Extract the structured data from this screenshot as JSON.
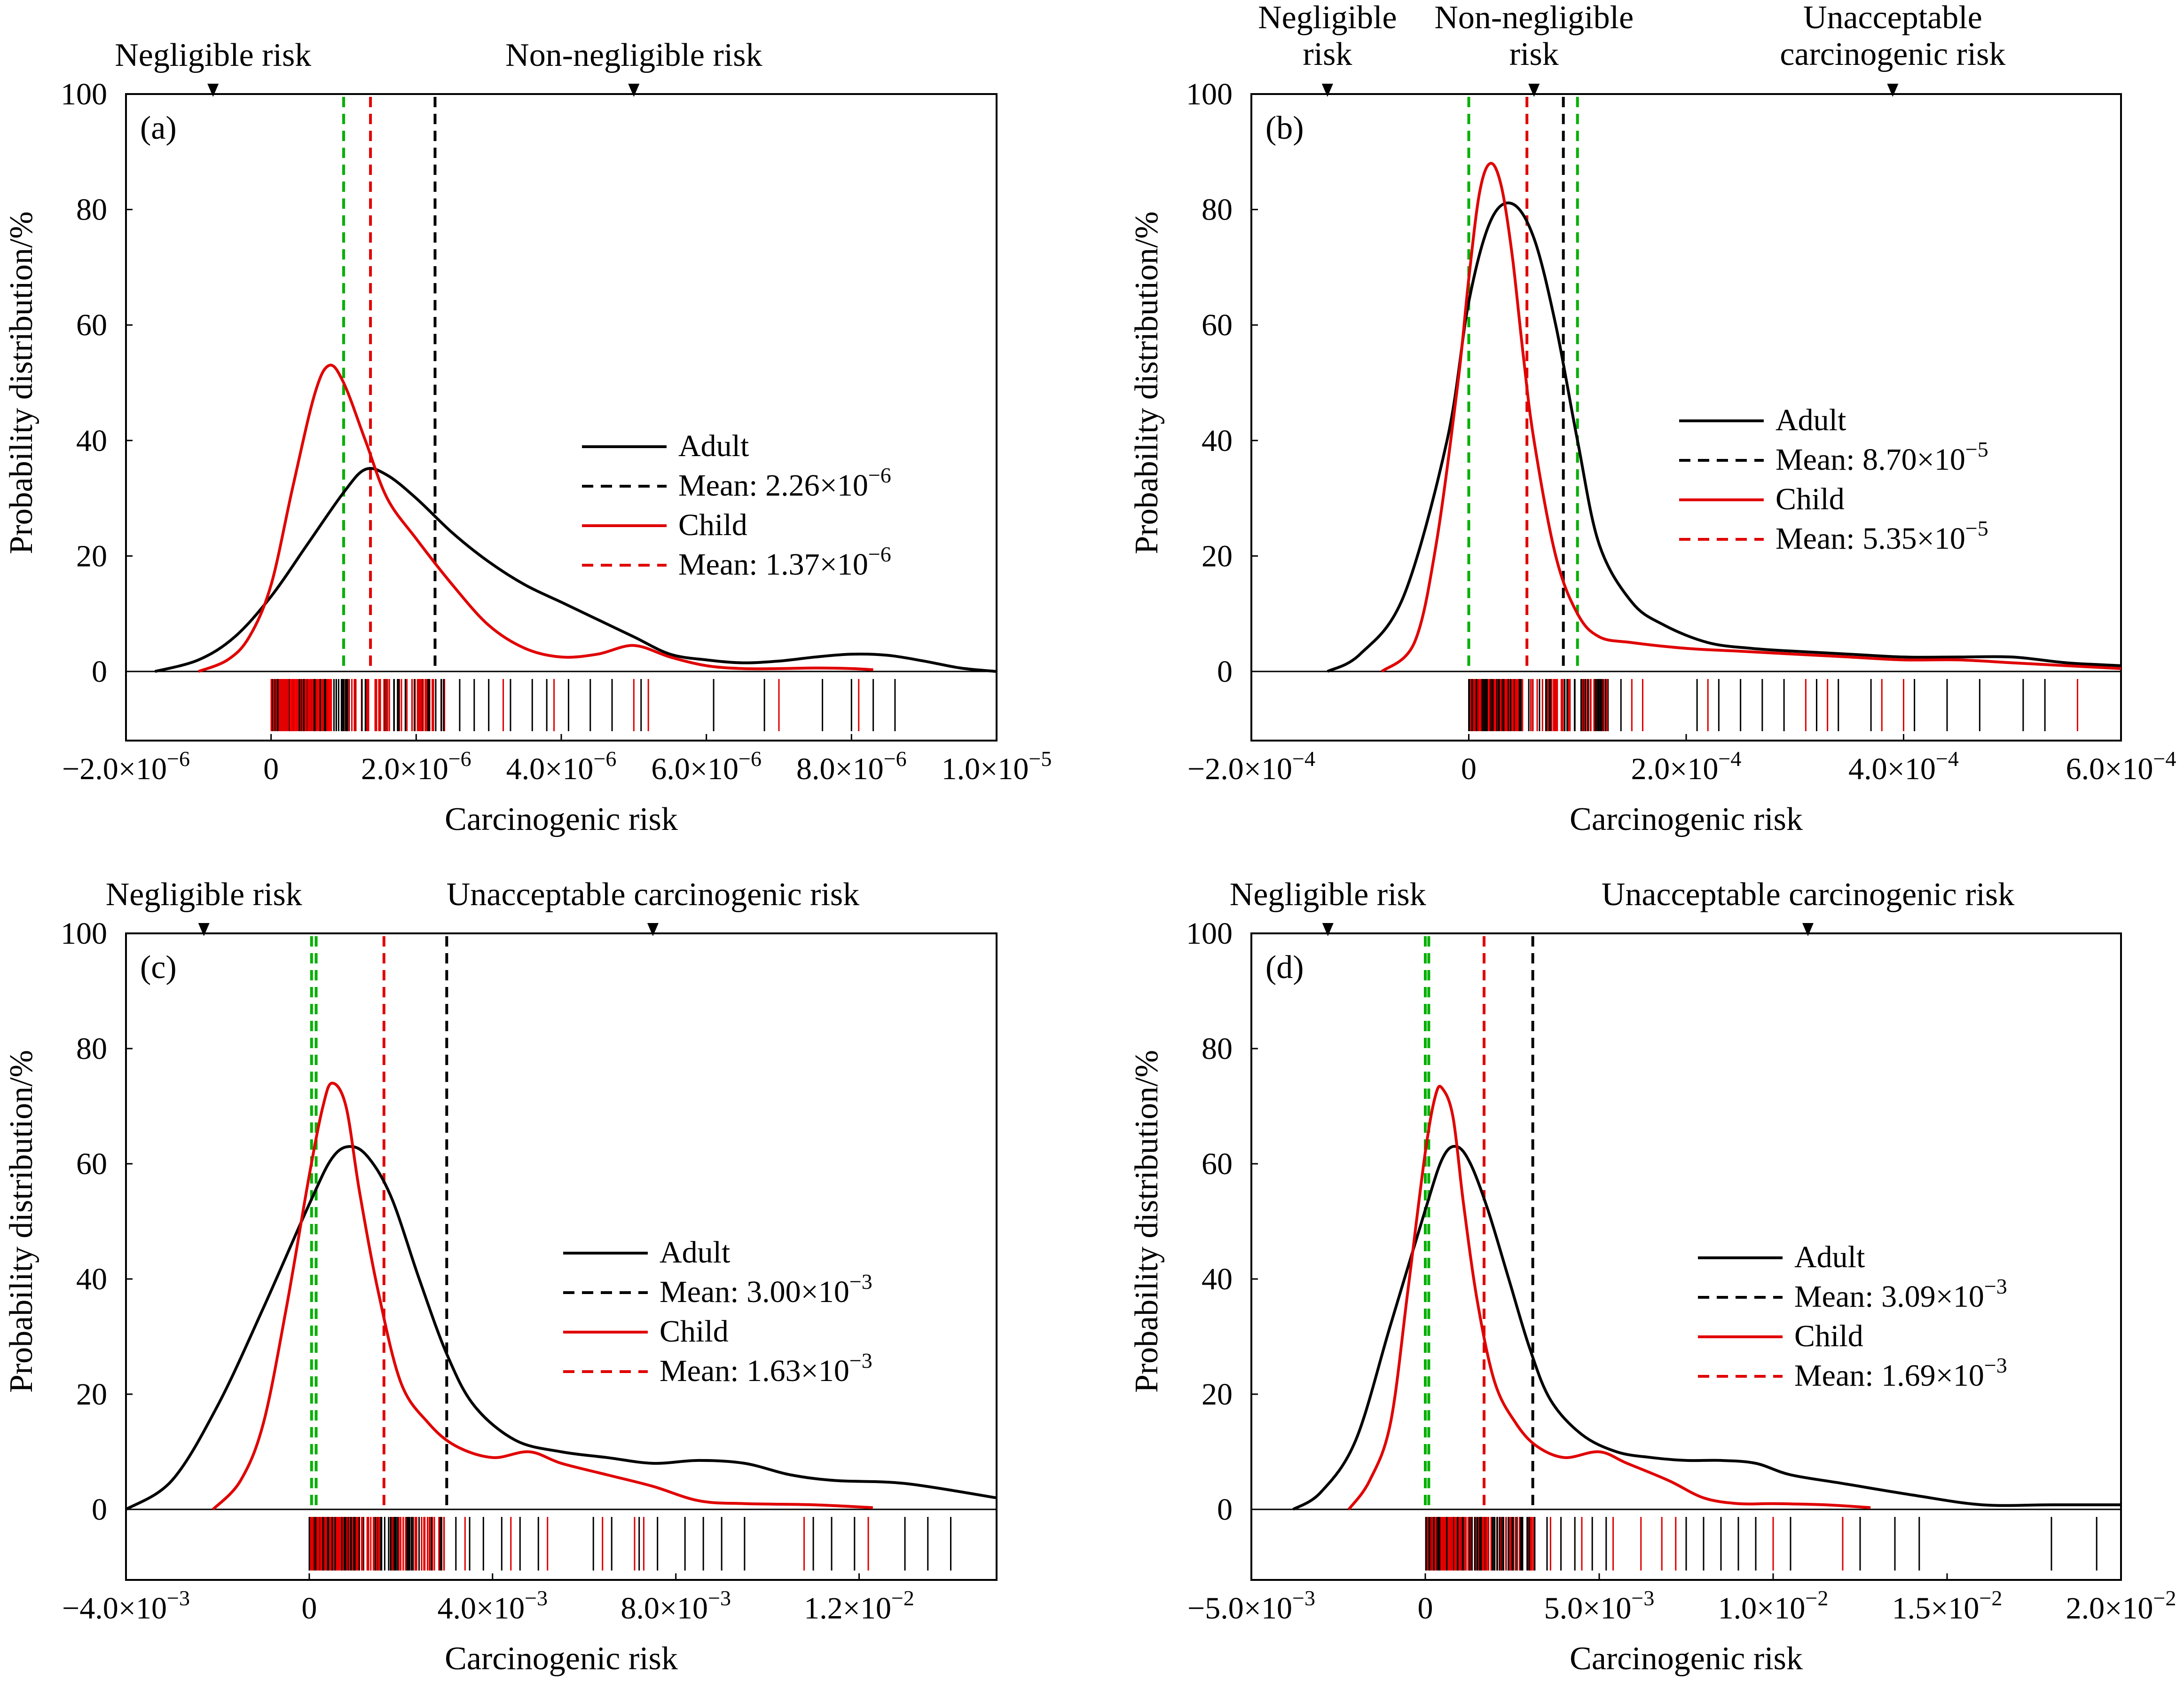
{
  "charts": {
    "a": {
      "label": "(a)",
      "ylabel": "Probability distribution/%",
      "xlabel": "Carcinogenic risk",
      "zones": [
        {
          "text": "Negligible risk",
          "marker_x": -8e-07
        },
        {
          "text": "Non-negligible risk",
          "marker_x": 5e-06
        }
      ]
    },
    "b": {
      "label": "(b)",
      "ylabel": "Probability distribution/%",
      "xlabel": "Carcinogenic risk",
      "zones": [
        {
          "text": "Negligible\nrisk",
          "marker_x": -0.00013
        },
        {
          "text": "Non-negligible\nrisk",
          "marker_x": 6e-05
        },
        {
          "text": "Unacceptable\ncarcinogenic risk",
          "marker_x": 0.00039
        }
      ]
    },
    "c": {
      "label": "(c)",
      "ylabel": "Probability distribution/%",
      "xlabel": "Carcinogenic risk",
      "zones": [
        {
          "text": "Negligible risk",
          "marker_x": -0.0023
        },
        {
          "text": "Unacceptable carcinogenic risk",
          "marker_x": 0.0075
        }
      ]
    },
    "d": {
      "label": "(d)",
      "ylabel": "Probability distribution/%",
      "xlabel": "Carcinogenic risk",
      "zones": [
        {
          "text": "Negligible risk",
          "marker_x": -0.0028
        },
        {
          "text": "Unacceptable carcinogenic risk",
          "marker_x": 0.011
        }
      ]
    }
  },
  "chart_data": [
    {
      "id": "a",
      "type": "line",
      "title": "(a)",
      "xlabel": "Carcinogenic risk",
      "ylabel": "Probability distribution/%",
      "xlim": [
        -2e-06,
        1e-05
      ],
      "ylim": [
        0,
        100
      ],
      "x_ticks": [
        -2e-06,
        0,
        2e-06,
        4e-06,
        6e-06,
        8e-06,
        1e-05
      ],
      "x_tick_labels": [
        "−2.0×10",
        "0",
        "2.0×10",
        "4.0×10",
        "6.0×10",
        "8.0×10",
        "1.0×10"
      ],
      "x_tick_exps": [
        "−6",
        "",
        "−6",
        "−6",
        "−6",
        "−6",
        "−5"
      ],
      "y_ticks": [
        0,
        20,
        40,
        60,
        80,
        100
      ],
      "series": [
        {
          "name": "Adult",
          "color": "#000000",
          "x": [
            -1.6e-06,
            -1e-06,
            -5e-07,
            0,
            5e-07,
            1e-06,
            1.3e-06,
            1.6e-06,
            2e-06,
            2.5e-06,
            3e-06,
            3.5e-06,
            4e-06,
            4.5e-06,
            5e-06,
            5.5e-06,
            6e-06,
            6.5e-06,
            7e-06,
            7.5e-06,
            8e-06,
            8.5e-06,
            9e-06,
            9.5e-06,
            1e-05
          ],
          "values": [
            0,
            2,
            6,
            13,
            22,
            31,
            35,
            34,
            30,
            24,
            19,
            15,
            12,
            9,
            6,
            3,
            2,
            1.5,
            1.8,
            2.5,
            3,
            2.8,
            1.8,
            0.6,
            0
          ]
        },
        {
          "name": "Child",
          "color": "#e00000",
          "x": [
            -1e-06,
            -6e-07,
            -3e-07,
            0,
            3e-07,
            6e-07,
            8e-07,
            1e-06,
            1.3e-06,
            1.6e-06,
            2e-06,
            2.5e-06,
            3e-06,
            3.5e-06,
            4e-06,
            4.5e-06,
            5e-06,
            5.5e-06,
            6e-06,
            6.5e-06,
            7e-06,
            7.5e-06,
            8e-06,
            8.3e-06
          ],
          "values": [
            0,
            2,
            6,
            15,
            32,
            48,
            53,
            50,
            40,
            30,
            23,
            15,
            8,
            4,
            2.5,
            3,
            4.5,
            2.5,
            1,
            0.5,
            0.5,
            0.6,
            0.5,
            0.3
          ]
        }
      ],
      "means": [
        {
          "name": "Adult mean",
          "value": 2.26e-06,
          "color": "#000000",
          "label": "Mean: 2.26×10",
          "exp": "−6"
        },
        {
          "name": "Child mean",
          "value": 1.37e-06,
          "color": "#e00000",
          "label": "Mean: 1.37×10",
          "exp": "−6"
        }
      ],
      "thresholds": [
        {
          "value": 1e-06,
          "color": "#00b000"
        }
      ],
      "legend": [
        "Adult",
        "Child"
      ],
      "rug": {
        "start": 0,
        "dense_end": 2.4e-06,
        "sparse": [
          2.6e-06,
          2.8e-06,
          3e-06,
          3.3e-06,
          3.6e-06,
          3.8e-06,
          4.1e-06,
          4.4e-06,
          4.7e-06,
          5.1e-06,
          6.1e-06,
          6.8e-06,
          7e-06,
          7.6e-06,
          8e-06,
          8.3e-06,
          8.6e-06
        ],
        "red_sparse": [
          3.2e-06,
          3.9e-06,
          5e-06,
          5.2e-06,
          7e-06,
          8.1e-06
        ]
      }
    },
    {
      "id": "b",
      "type": "line",
      "title": "(b)",
      "xlabel": "Carcinogenic risk",
      "ylabel": "Probability distribution/%",
      "xlim": [
        -0.0002,
        0.0006
      ],
      "ylim": [
        0,
        100
      ],
      "x_ticks": [
        -0.0002,
        0,
        0.0002,
        0.0004,
        0.0006
      ],
      "x_tick_labels": [
        "−2.0×10",
        "0",
        "2.0×10",
        "4.0×10",
        "6.0×10"
      ],
      "x_tick_exps": [
        "−4",
        "",
        "−4",
        "−4",
        "−4"
      ],
      "y_ticks": [
        0,
        20,
        40,
        60,
        80,
        100
      ],
      "series": [
        {
          "name": "Adult",
          "color": "#000000",
          "x": [
            -0.00013,
            -0.0001,
            -6e-05,
            -2e-05,
            0,
            2e-05,
            4e-05,
            6e-05,
            8e-05,
            0.0001,
            0.00012,
            0.00015,
            0.00018,
            0.00022,
            0.00026,
            0.0003,
            0.00035,
            0.0004,
            0.00045,
            0.0005,
            0.00055,
            0.0006
          ],
          "values": [
            0,
            3,
            13,
            40,
            64,
            78,
            81,
            75,
            60,
            40,
            22,
            12,
            8,
            5,
            4,
            3.5,
            3,
            2.5,
            2.5,
            2.5,
            1.5,
            1
          ]
        },
        {
          "name": "Child",
          "color": "#e00000",
          "x": [
            -8e-05,
            -5e-05,
            -3e-05,
            -1e-05,
            0,
            1e-05,
            2e-05,
            3e-05,
            4e-05,
            5e-05,
            6e-05,
            8e-05,
            0.0001,
            0.00012,
            0.00015,
            0.0002,
            0.00025,
            0.0003,
            0.00035,
            0.0004,
            0.00045,
            0.0005,
            0.00055,
            0.0006
          ],
          "values": [
            0,
            5,
            22,
            50,
            68,
            83,
            88,
            84,
            72,
            55,
            40,
            20,
            10,
            6,
            5,
            4,
            3.5,
            3,
            2.5,
            2,
            2,
            1.5,
            1,
            0.5
          ]
        }
      ],
      "means": [
        {
          "name": "Adult mean",
          "value": 8.7e-05,
          "color": "#000000",
          "label": "Mean: 8.70×10",
          "exp": "−5"
        },
        {
          "name": "Child mean",
          "value": 5.35e-05,
          "color": "#e00000",
          "label": "Mean: 5.35×10",
          "exp": "−5"
        }
      ],
      "thresholds": [
        {
          "value": 0,
          "color": "#00b000"
        },
        {
          "value": 0.0001,
          "color": "#00b000"
        }
      ],
      "legend": [
        "Adult",
        "Child"
      ],
      "rug": {
        "start": 0,
        "dense_end": 0.00013,
        "sparse": [
          0.00014,
          0.00016,
          0.00021,
          0.00023,
          0.00025,
          0.00027,
          0.00029,
          0.00032,
          0.00034,
          0.00037,
          0.0004,
          0.00041,
          0.00044,
          0.00047,
          0.00051,
          0.00053
        ],
        "red_sparse": [
          0.00015,
          0.00016,
          0.00022,
          0.00031,
          0.00033,
          0.00038,
          0.0004,
          0.00056
        ]
      }
    },
    {
      "id": "c",
      "type": "line",
      "title": "(c)",
      "xlabel": "Carcinogenic risk",
      "ylabel": "Probability distribution/%",
      "xlim": [
        -0.004,
        0.015
      ],
      "ylim": [
        0,
        100
      ],
      "x_ticks": [
        -0.004,
        0,
        0.004,
        0.008,
        0.012
      ],
      "x_tick_labels": [
        "−4.0×10",
        "0",
        "4.0×10",
        "8.0×10",
        "1.2×10"
      ],
      "x_tick_exps": [
        "−3",
        "",
        "−3",
        "−3",
        "−2"
      ],
      "y_ticks": [
        0,
        20,
        40,
        60,
        80,
        100
      ],
      "series": [
        {
          "name": "Adult",
          "color": "#000000",
          "x": [
            -0.004,
            -0.003,
            -0.002,
            -0.001,
            0,
            0.0005,
            0.0009,
            0.0013,
            0.0018,
            0.0024,
            0.003,
            0.0036,
            0.0045,
            0.0055,
            0.0065,
            0.0075,
            0.0085,
            0.0095,
            0.0105,
            0.0115,
            0.013,
            0.015
          ],
          "values": [
            0,
            5,
            18,
            35,
            53,
            61,
            63,
            61,
            54,
            40,
            27,
            18,
            12,
            10,
            9,
            8,
            8.5,
            8,
            6,
            5,
            4.5,
            2
          ]
        },
        {
          "name": "Child",
          "color": "#e00000",
          "x": [
            -0.0021,
            -0.0015,
            -0.001,
            -0.0005,
            0,
            0.0003,
            0.0005,
            0.0008,
            0.0011,
            0.0015,
            0.002,
            0.0026,
            0.0032,
            0.004,
            0.0048,
            0.0055,
            0.0065,
            0.0075,
            0.0085,
            0.0095,
            0.011,
            0.0123
          ],
          "values": [
            0,
            5,
            15,
            35,
            58,
            70,
            74,
            70,
            55,
            38,
            22,
            15,
            11,
            9,
            10,
            8,
            6,
            4,
            1.5,
            1,
            0.8,
            0.3
          ]
        }
      ],
      "means": [
        {
          "name": "Adult mean",
          "value": 0.003,
          "color": "#000000",
          "label": "Mean: 3.00×10",
          "exp": "−3"
        },
        {
          "name": "Child mean",
          "value": 0.00163,
          "color": "#e00000",
          "label": "Mean: 1.63×10",
          "exp": "−3"
        }
      ],
      "thresholds": [
        {
          "value": 5e-05,
          "color": "#00b000"
        },
        {
          "value": 0.00015,
          "color": "#00b000"
        }
      ],
      "legend": [
        "Adult",
        "Child"
      ],
      "rug": {
        "start": 0,
        "dense_end": 0.003,
        "sparse": [
          0.0032,
          0.0035,
          0.0038,
          0.0042,
          0.0046,
          0.005,
          0.0062,
          0.0066,
          0.0072,
          0.0076,
          0.0082,
          0.0086,
          0.009,
          0.0095,
          0.011,
          0.0114,
          0.0119,
          0.013,
          0.0135,
          0.014
        ],
        "red_sparse": [
          0.0034,
          0.0044,
          0.0052,
          0.0064,
          0.0071,
          0.0073,
          0.0108,
          0.0122
        ]
      }
    },
    {
      "id": "d",
      "type": "line",
      "title": "(d)",
      "xlabel": "Carcinogenic risk",
      "ylabel": "Probability distribution/%",
      "xlim": [
        -0.005,
        0.02
      ],
      "ylim": [
        0,
        100
      ],
      "x_ticks": [
        -0.005,
        0,
        0.005,
        0.01,
        0.015,
        0.02
      ],
      "x_tick_labels": [
        "−5.0×10",
        "0",
        "5.0×10",
        "1.0×10",
        "1.5×10",
        "2.0×10"
      ],
      "x_tick_exps": [
        "−3",
        "",
        "−3",
        "−2",
        "−2",
        "−2"
      ],
      "y_ticks": [
        0,
        20,
        40,
        60,
        80,
        100
      ],
      "series": [
        {
          "name": "Adult",
          "color": "#000000",
          "x": [
            -0.0038,
            -0.003,
            -0.002,
            -0.001,
            0,
            0.0005,
            0.0009,
            0.0013,
            0.0018,
            0.0024,
            0.003,
            0.0036,
            0.0045,
            0.0055,
            0.0065,
            0.0075,
            0.0085,
            0.0095,
            0.0105,
            0.012,
            0.014,
            0.016,
            0.018,
            0.02
          ],
          "values": [
            0,
            3,
            12,
            32,
            52,
            61,
            63,
            60,
            52,
            40,
            28,
            19,
            13,
            10,
            9,
            8.5,
            8.5,
            8,
            6,
            4.5,
            2.5,
            0.8,
            0.8,
            0.8
          ]
        },
        {
          "name": "Child",
          "color": "#e00000",
          "x": [
            -0.0022,
            -0.0016,
            -0.001,
            -0.0005,
            0,
            0.0003,
            0.0005,
            0.0008,
            0.0011,
            0.0015,
            0.002,
            0.0026,
            0.0032,
            0.004,
            0.005,
            0.0058,
            0.007,
            0.008,
            0.009,
            0.01,
            0.0115,
            0.0128
          ],
          "values": [
            0,
            5,
            15,
            38,
            62,
            72,
            73,
            68,
            53,
            36,
            22,
            15,
            11,
            9,
            10,
            8,
            5,
            2,
            1,
            1,
            0.8,
            0.3
          ]
        }
      ],
      "means": [
        {
          "name": "Adult mean",
          "value": 0.00309,
          "color": "#000000",
          "label": "Mean: 3.09×10",
          "exp": "−3"
        },
        {
          "name": "Child mean",
          "value": 0.00169,
          "color": "#e00000",
          "label": "Mean: 1.69×10",
          "exp": "−3"
        }
      ],
      "thresholds": [
        {
          "value": 0.0,
          "color": "#00b000"
        },
        {
          "value": 0.0001,
          "color": "#00b000"
        }
      ],
      "legend": [
        "Adult",
        "Child"
      ],
      "rug": {
        "start": 0,
        "dense_end": 0.0032,
        "sparse": [
          0.0035,
          0.0039,
          0.0043,
          0.0048,
          0.0052,
          0.0075,
          0.008,
          0.0085,
          0.009,
          0.0095,
          0.01,
          0.0105,
          0.012,
          0.0125,
          0.0135,
          0.0142,
          0.018,
          0.0193
        ],
        "red_sparse": [
          0.0036,
          0.0045,
          0.0054,
          0.0062,
          0.0068,
          0.0072,
          0.01,
          0.012
        ]
      }
    }
  ],
  "legend_labels": {
    "adult": "Adult",
    "child": "Child"
  }
}
